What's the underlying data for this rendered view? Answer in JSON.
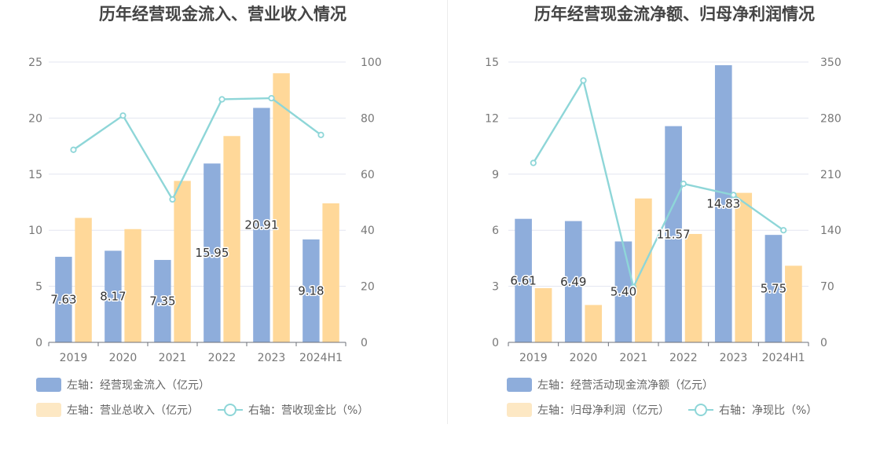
{
  "panels": [
    {
      "title": "历年经营现金流入、营业收入情况",
      "legend": [
        {
          "label": "左轴：经营现金流入（亿元）",
          "symbol": "bar",
          "color": "#8eaddb"
        },
        {
          "label": "左轴：营业总收入（亿元）",
          "symbol": "bar",
          "color": "#fde2b6"
        },
        {
          "label": "右轴：营收现金比（%）",
          "symbol": "line",
          "color": "#8ed6d8"
        }
      ]
    },
    {
      "title": "历年经营现金流净额、归母净利润情况",
      "legend": [
        {
          "label": "左轴：经营活动现金流净额（亿元）",
          "symbol": "bar",
          "color": "#8eaddb"
        },
        {
          "label": "左轴：归母净利润（亿元）",
          "symbol": "bar",
          "color": "#fde2b6"
        },
        {
          "label": "右轴：净现比（%）",
          "symbol": "line",
          "color": "#8ed6d8"
        }
      ]
    }
  ],
  "chart_data": [
    {
      "type": "bar",
      "title": "历年经营现金流入、营业收入情况",
      "categories": [
        "2019",
        "2020",
        "2021",
        "2022",
        "2023",
        "2024H1"
      ],
      "y_left": {
        "ylim": [
          0,
          25
        ],
        "ticks": [
          0,
          5,
          10,
          15,
          20,
          25
        ]
      },
      "y_right": {
        "ylim": [
          0,
          100
        ],
        "ticks": [
          0,
          20,
          40,
          60,
          80,
          100
        ]
      },
      "series": [
        {
          "name": "左轴：经营现金流入（亿元）",
          "type": "bar",
          "axis": "left",
          "color": "#8eaddb",
          "values": [
            7.63,
            8.17,
            7.35,
            15.95,
            20.91,
            9.18
          ],
          "labels": [
            "7.63",
            "8.17",
            "7.35",
            "15.95",
            "20.91",
            "9.18"
          ]
        },
        {
          "name": "左轴：营业总收入（亿元）",
          "type": "bar",
          "axis": "left",
          "color": "#ffd899",
          "values": [
            11.1,
            10.1,
            14.4,
            18.4,
            24.0,
            12.4
          ]
        },
        {
          "name": "右轴：营收现金比（%）",
          "type": "line",
          "axis": "right",
          "color": "#8ed6d8",
          "values": [
            68.7,
            80.9,
            51.0,
            86.7,
            87.1,
            74.0
          ]
        }
      ],
      "grid": true,
      "legend_position": "bottom-left"
    },
    {
      "type": "bar",
      "title": "历年经营现金流净额、归母净利润情况",
      "categories": [
        "2019",
        "2020",
        "2021",
        "2022",
        "2023",
        "2024H1"
      ],
      "y_left": {
        "ylim": [
          0,
          15
        ],
        "ticks": [
          0,
          3,
          6,
          9,
          12,
          15
        ]
      },
      "y_right": {
        "ylim": [
          0,
          350
        ],
        "ticks": [
          0,
          70,
          140,
          210,
          280,
          350
        ]
      },
      "series": [
        {
          "name": "左轴：经营活动现金流净额（亿元）",
          "type": "bar",
          "axis": "left",
          "color": "#8eaddb",
          "values": [
            6.61,
            6.49,
            5.4,
            11.57,
            14.83,
            5.75
          ],
          "labels": [
            "6.61",
            "6.49",
            "5.40",
            "11.57",
            "14.83",
            "5.75"
          ]
        },
        {
          "name": "左轴：归母净利润（亿元）",
          "type": "bar",
          "axis": "left",
          "color": "#ffd899",
          "values": [
            2.9,
            2.0,
            7.7,
            5.8,
            8.0,
            4.1
          ]
        },
        {
          "name": "右轴：净现比（%）",
          "type": "line",
          "axis": "right",
          "color": "#8ed6d8",
          "values": [
            224,
            327,
            69,
            198,
            184,
            140
          ]
        }
      ],
      "grid": true,
      "legend_position": "bottom-left"
    }
  ]
}
